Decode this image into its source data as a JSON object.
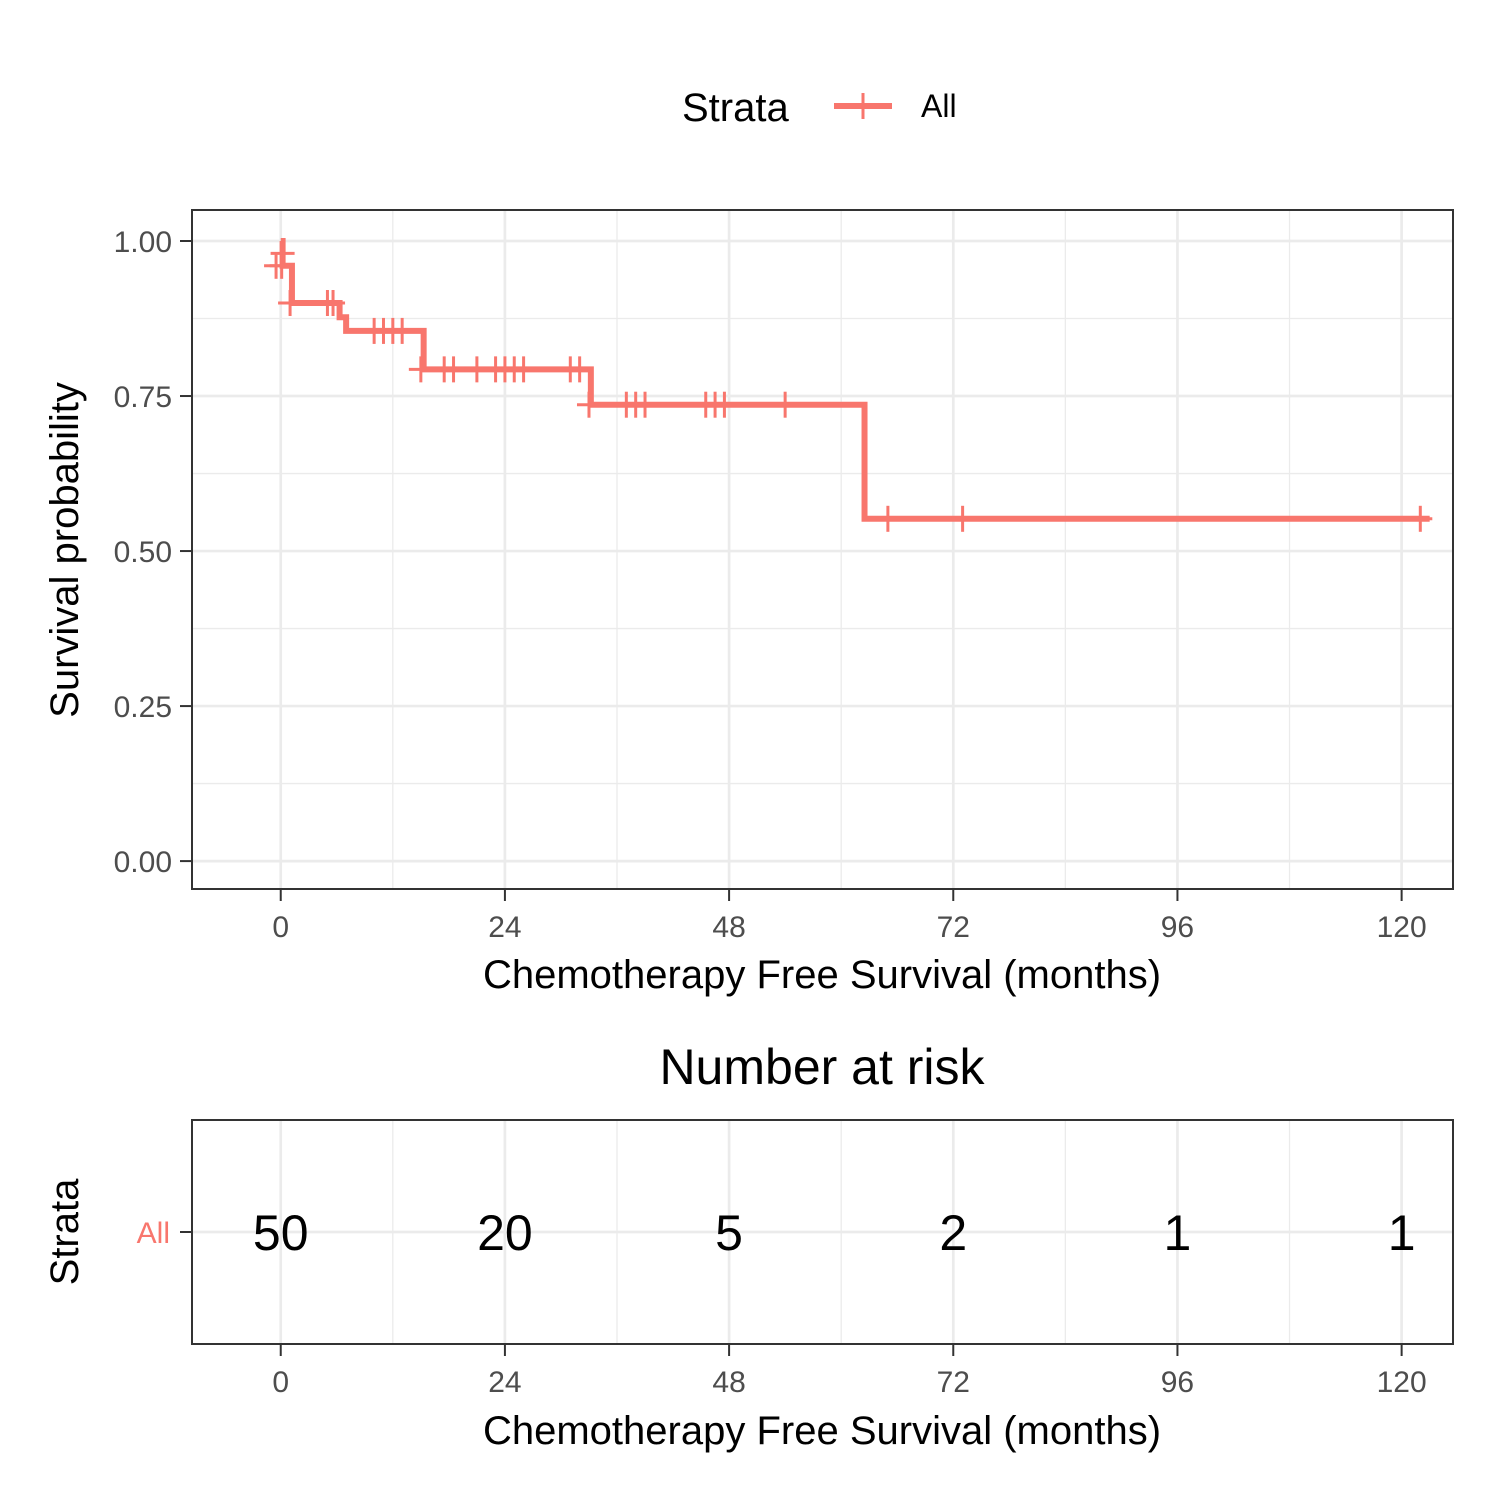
{
  "colors": {
    "strata_all": "#F8766D",
    "grid": "#EBEBEB",
    "panel_border": "#333333"
  },
  "legend": {
    "title": "Strata",
    "label": "All"
  },
  "chart_data": [
    {
      "type": "line",
      "subtype": "kaplan-meier-step",
      "xlabel": "Chemotherapy Free Survival (months)",
      "ylabel": "Survival probability",
      "xlim": [
        -9.5,
        125.5
      ],
      "ylim": [
        -0.045,
        1.05
      ],
      "x_ticks": [
        "0",
        "24",
        "48",
        "72",
        "96",
        "120"
      ],
      "x_tick_values": [
        0,
        24,
        48,
        72,
        96,
        120
      ],
      "y_ticks": [
        "0.00",
        "0.25",
        "0.50",
        "0.75",
        "1.00"
      ],
      "y_tick_values": [
        0,
        0.25,
        0.5,
        0.75,
        1.0
      ],
      "grid": true,
      "legend_position": "top",
      "series": [
        {
          "name": "All",
          "steps": [
            [
              0,
              1.0
            ],
            [
              0.2,
              0.96
            ],
            [
              1.2,
              0.9
            ],
            [
              6.3,
              0.877
            ],
            [
              7.0,
              0.855
            ],
            [
              15.3,
              0.793
            ],
            [
              33.2,
              0.736
            ],
            [
              62.5,
              0.552
            ],
            [
              123,
              0.552
            ]
          ],
          "censor_marks": [
            [
              -0.5,
              0.96
            ],
            [
              0.1,
              0.96
            ],
            [
              0.2,
              0.98
            ],
            [
              1.0,
              0.9
            ],
            [
              5.0,
              0.9
            ],
            [
              5.6,
              0.9
            ],
            [
              10.0,
              0.855
            ],
            [
              11.0,
              0.855
            ],
            [
              12.0,
              0.855
            ],
            [
              13.0,
              0.855
            ],
            [
              15.0,
              0.793
            ],
            [
              17.5,
              0.793
            ],
            [
              18.5,
              0.793
            ],
            [
              21.0,
              0.793
            ],
            [
              23.0,
              0.793
            ],
            [
              24.0,
              0.793
            ],
            [
              25.0,
              0.793
            ],
            [
              26.0,
              0.793
            ],
            [
              31.0,
              0.793
            ],
            [
              32.0,
              0.793
            ],
            [
              33.0,
              0.736
            ],
            [
              37.0,
              0.736
            ],
            [
              38.0,
              0.736
            ],
            [
              39.0,
              0.736
            ],
            [
              45.5,
              0.736
            ],
            [
              46.5,
              0.736
            ],
            [
              47.5,
              0.736
            ],
            [
              54.0,
              0.736
            ],
            [
              65.0,
              0.552
            ],
            [
              73.0,
              0.552
            ],
            [
              122.0,
              0.552
            ]
          ]
        }
      ]
    },
    {
      "type": "table",
      "title": "Number at risk",
      "xlabel": "Chemotherapy Free Survival (months)",
      "ylabel": "Strata",
      "xlim": [
        -9.5,
        125.5
      ],
      "x_ticks": [
        "0",
        "24",
        "48",
        "72",
        "96",
        "120"
      ],
      "x_tick_values": [
        0,
        24,
        48,
        72,
        96,
        120
      ],
      "rows": [
        {
          "label": "All",
          "values": [
            50,
            20,
            5,
            2,
            1,
            1
          ],
          "display": [
            "50",
            "20",
            "5",
            "2",
            "1",
            "1"
          ]
        }
      ]
    }
  ]
}
